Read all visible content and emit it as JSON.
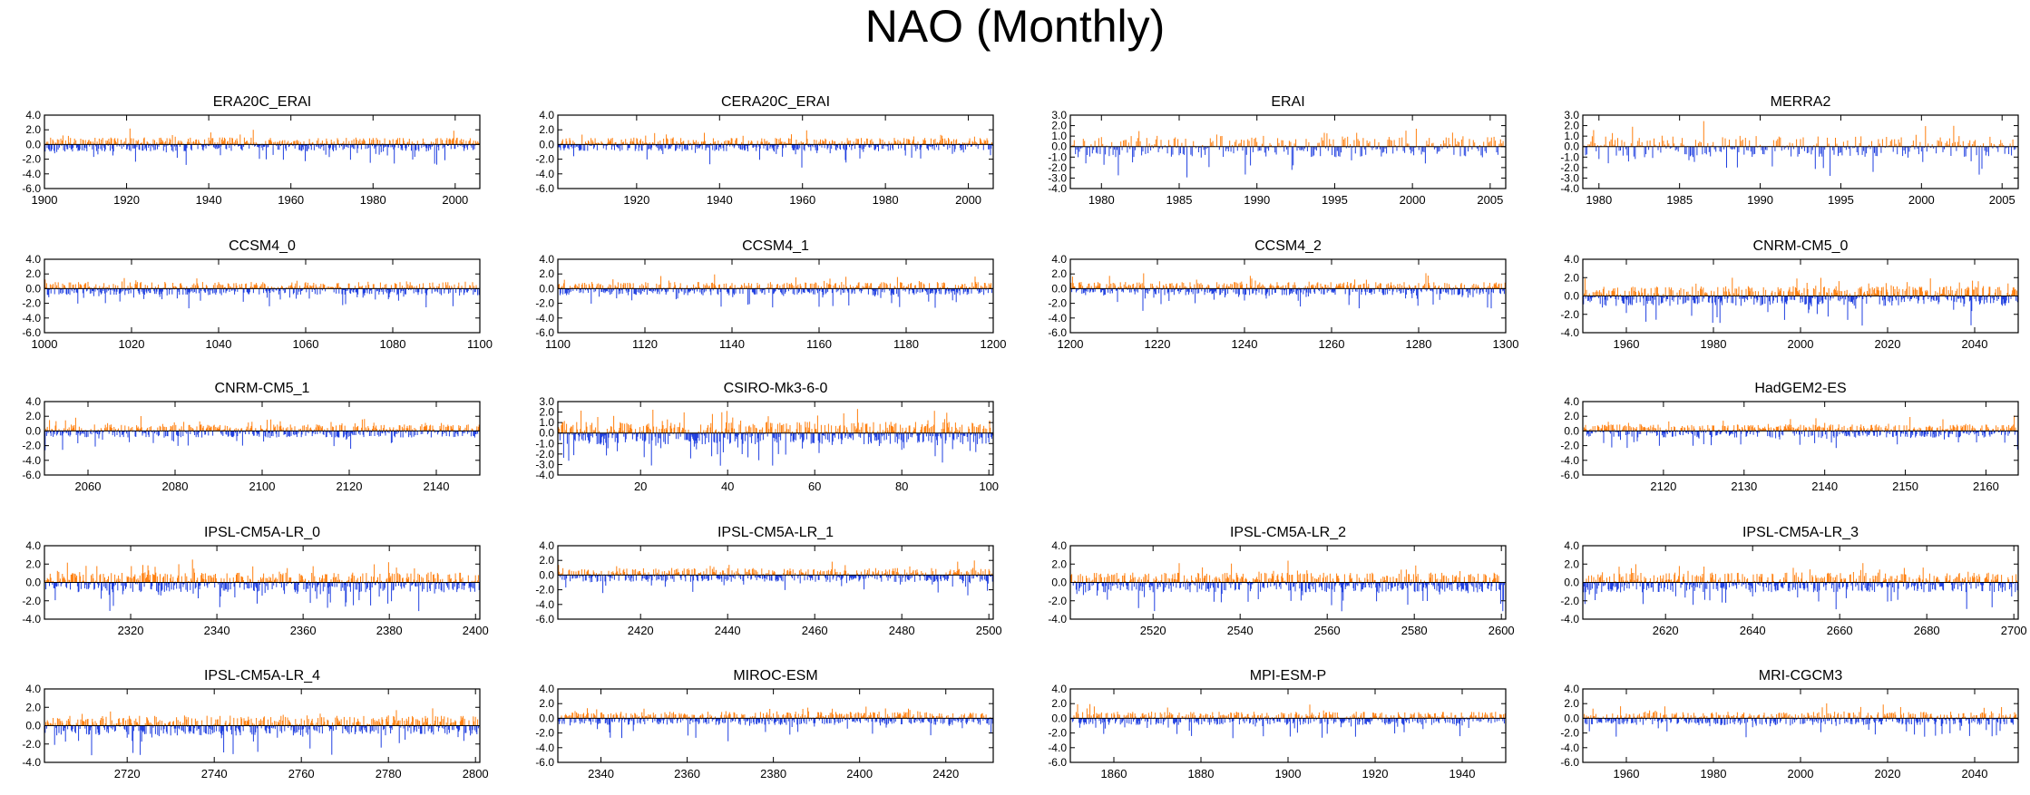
{
  "title": "NAO (Monthly)",
  "colors": {
    "positive": "#ff7f0e",
    "negative": "#1f3fe0",
    "axis": "#000000",
    "zero_line": "#000000"
  },
  "chart_data": [
    {
      "type": "bar",
      "title": "ERA20C_ERAI",
      "xlim": [
        1900,
        2006
      ],
      "xticks": [
        1900,
        1920,
        1940,
        1960,
        1980,
        2000
      ],
      "yticks": [
        -6.0,
        -4.0,
        -2.0,
        0.0,
        2.0,
        4.0
      ],
      "ylim": [
        -6.0,
        4.0
      ],
      "typical_amplitude": 1.6
    },
    {
      "type": "bar",
      "title": "CERA20C_ERAI",
      "xlim": [
        1901,
        2006
      ],
      "xticks": [
        1920,
        1940,
        1960,
        1980,
        2000
      ],
      "yticks": [
        -6.0,
        -4.0,
        -2.0,
        0.0,
        2.0,
        4.0
      ],
      "ylim": [
        -6.0,
        4.0
      ],
      "typical_amplitude": 1.5
    },
    {
      "type": "bar",
      "title": "ERAI",
      "xlim": [
        1978,
        2006
      ],
      "xticks": [
        1980,
        1985,
        1990,
        1995,
        2000,
        2005
      ],
      "yticks": [
        -4.0,
        -3.0,
        -2.0,
        -1.0,
        0.0,
        1.0,
        2.0,
        3.0
      ],
      "ylim": [
        -4.0,
        3.0
      ],
      "typical_amplitude": 1.7
    },
    {
      "type": "bar",
      "title": "MERRA2",
      "xlim": [
        1979,
        2006
      ],
      "xticks": [
        1980,
        1985,
        1990,
        1995,
        2000,
        2005
      ],
      "yticks": [
        -4.0,
        -3.0,
        -2.0,
        -1.0,
        0.0,
        1.0,
        2.0,
        3.0
      ],
      "ylim": [
        -4.0,
        3.0
      ],
      "typical_amplitude": 1.7
    },
    {
      "type": "bar",
      "title": "CCSM4_0",
      "xlim": [
        1000,
        1100
      ],
      "xticks": [
        1000,
        1020,
        1040,
        1060,
        1080,
        1100
      ],
      "yticks": [
        -6.0,
        -4.0,
        -2.0,
        0.0,
        2.0,
        4.0
      ],
      "ylim": [
        -6.0,
        4.0
      ],
      "typical_amplitude": 1.5
    },
    {
      "type": "bar",
      "title": "CCSM4_1",
      "xlim": [
        1100,
        1200
      ],
      "xticks": [
        1100,
        1120,
        1140,
        1160,
        1180,
        1200
      ],
      "yticks": [
        -6.0,
        -4.0,
        -2.0,
        0.0,
        2.0,
        4.0
      ],
      "ylim": [
        -6.0,
        4.0
      ],
      "typical_amplitude": 1.5
    },
    {
      "type": "bar",
      "title": "CCSM4_2",
      "xlim": [
        1200,
        1300
      ],
      "xticks": [
        1200,
        1220,
        1240,
        1260,
        1280,
        1300
      ],
      "yticks": [
        -6.0,
        -4.0,
        -2.0,
        0.0,
        2.0,
        4.0
      ],
      "ylim": [
        -6.0,
        4.0
      ],
      "typical_amplitude": 1.5
    },
    {
      "type": "bar",
      "title": "CNRM-CM5_0",
      "xlim": [
        1950,
        2050
      ],
      "xticks": [
        1960,
        1980,
        2000,
        2020,
        2040
      ],
      "yticks": [
        -4.0,
        -2.0,
        0.0,
        2.0,
        4.0
      ],
      "ylim": [
        -4.0,
        4.0
      ],
      "typical_amplitude": 1.8
    },
    {
      "type": "bar",
      "title": "CNRM-CM5_1",
      "xlim": [
        2050,
        2150
      ],
      "xticks": [
        2060,
        2080,
        2100,
        2120,
        2140
      ],
      "yticks": [
        -6.0,
        -4.0,
        -2.0,
        0.0,
        2.0,
        4.0
      ],
      "ylim": [
        -6.0,
        4.0
      ],
      "typical_amplitude": 1.5
    },
    {
      "type": "bar",
      "title": "CSIRO-Mk3-6-0",
      "xlim": [
        1,
        101
      ],
      "xticks": [
        20,
        40,
        60,
        80,
        100
      ],
      "yticks": [
        -4.0,
        -3.0,
        -2.0,
        -1.0,
        0.0,
        1.0,
        2.0,
        3.0
      ],
      "ylim": [
        -4.0,
        3.0
      ],
      "typical_amplitude": 1.8
    },
    {
      "type": "bar",
      "title": "HadGEM2-ES",
      "xlim": [
        2110,
        2164
      ],
      "xticks": [
        2120,
        2130,
        2140,
        2150,
        2160
      ],
      "yticks": [
        -6.0,
        -4.0,
        -2.0,
        0.0,
        2.0,
        4.0
      ],
      "ylim": [
        -6.0,
        4.0
      ],
      "typical_amplitude": 1.5
    },
    {
      "type": "bar",
      "title": "IPSL-CM5A-LR_0",
      "xlim": [
        2300,
        2401
      ],
      "xticks": [
        2320,
        2340,
        2360,
        2380,
        2400
      ],
      "yticks": [
        -4.0,
        -2.0,
        0.0,
        2.0,
        4.0
      ],
      "ylim": [
        -4.0,
        4.0
      ],
      "typical_amplitude": 1.8
    },
    {
      "type": "bar",
      "title": "IPSL-CM5A-LR_1",
      "xlim": [
        2401,
        2501
      ],
      "xticks": [
        2420,
        2440,
        2460,
        2480,
        2500
      ],
      "yticks": [
        -6.0,
        -4.0,
        -2.0,
        0.0,
        2.0,
        4.0
      ],
      "ylim": [
        -6.0,
        4.0
      ],
      "typical_amplitude": 1.6
    },
    {
      "type": "bar",
      "title": "IPSL-CM5A-LR_2",
      "xlim": [
        2501,
        2601
      ],
      "xticks": [
        2520,
        2540,
        2560,
        2580,
        2600
      ],
      "yticks": [
        -4.0,
        -2.0,
        0.0,
        2.0,
        4.0
      ],
      "ylim": [
        -4.0,
        4.0
      ],
      "typical_amplitude": 1.8
    },
    {
      "type": "bar",
      "title": "IPSL-CM5A-LR_3",
      "xlim": [
        2601,
        2701
      ],
      "xticks": [
        2620,
        2640,
        2660,
        2680,
        2700
      ],
      "yticks": [
        -4.0,
        -2.0,
        0.0,
        2.0,
        4.0
      ],
      "ylim": [
        -4.0,
        4.0
      ],
      "typical_amplitude": 1.8
    },
    {
      "type": "bar",
      "title": "IPSL-CM5A-LR_4",
      "xlim": [
        2701,
        2801
      ],
      "xticks": [
        2720,
        2740,
        2760,
        2780,
        2800
      ],
      "yticks": [
        -4.0,
        -2.0,
        0.0,
        2.0,
        4.0
      ],
      "ylim": [
        -4.0,
        4.0
      ],
      "typical_amplitude": 1.8
    },
    {
      "type": "bar",
      "title": "MIROC-ESM",
      "xlim": [
        2330,
        2431
      ],
      "xticks": [
        2340,
        2360,
        2380,
        2400,
        2420
      ],
      "yticks": [
        -6.0,
        -4.0,
        -2.0,
        0.0,
        2.0,
        4.0
      ],
      "ylim": [
        -6.0,
        4.0
      ],
      "typical_amplitude": 1.5
    },
    {
      "type": "bar",
      "title": "MPI-ESM-P",
      "xlim": [
        1850,
        1950
      ],
      "xticks": [
        1860,
        1880,
        1900,
        1920,
        1940
      ],
      "yticks": [
        -6.0,
        -4.0,
        -2.0,
        0.0,
        2.0,
        4.0
      ],
      "ylim": [
        -6.0,
        4.0
      ],
      "typical_amplitude": 1.5
    },
    {
      "type": "bar",
      "title": "MRI-CGCM3",
      "xlim": [
        1950,
        2050
      ],
      "xticks": [
        1960,
        1980,
        2000,
        2020,
        2040
      ],
      "yticks": [
        -6.0,
        -4.0,
        -2.0,
        0.0,
        2.0,
        4.0
      ],
      "ylim": [
        -6.0,
        4.0
      ],
      "typical_amplitude": 1.5
    }
  ]
}
